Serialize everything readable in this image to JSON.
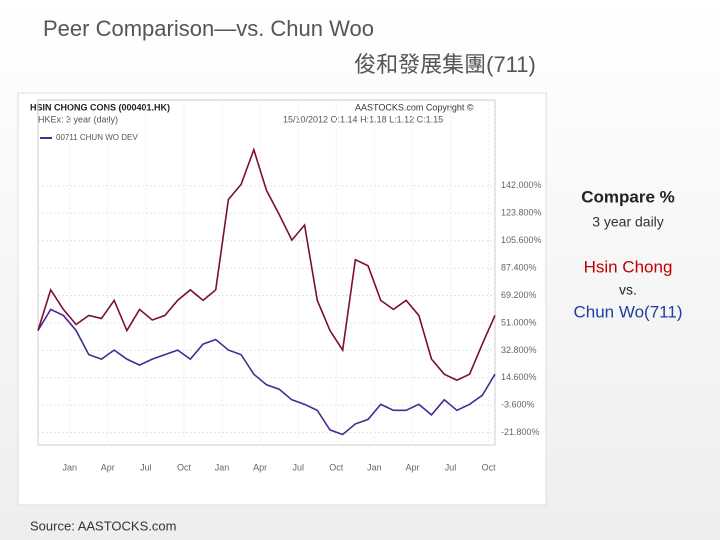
{
  "slide": {
    "title": "Peer Comparison—vs. Chun Woo",
    "subtitle": "俊和發展集團(711)",
    "compare": "Compare %",
    "period": "3 year daily",
    "company": "Hsin Chong",
    "vs": "vs.",
    "peer": "Chun Wo(711)",
    "source": "Source: AASTOCKS.com"
  },
  "chart_data": {
    "type": "line",
    "subtitle": "HKEx: 3 year (daily)",
    "copyright": "AASTOCKS.com Copyright ©",
    "quote": "15/10/2012 O:1.14 H:1.18 L:1.12 C:1.15",
    "x": [
      0,
      1,
      2,
      3,
      4,
      5,
      6,
      7,
      8,
      9,
      10,
      11,
      12,
      13,
      14,
      15,
      16,
      17,
      18,
      19,
      20,
      21,
      22,
      23,
      24,
      25,
      26,
      27,
      28,
      29,
      30,
      31,
      32,
      33,
      34,
      35,
      36
    ],
    "series": [
      {
        "name": "HSIN CHONG CONS (000401.HK)",
        "color": "#7a1030",
        "values": [
          46,
          73,
          60,
          50,
          56,
          54,
          66,
          46,
          60,
          53,
          56,
          66,
          73,
          66,
          73,
          133,
          143,
          166,
          139,
          123,
          106,
          116,
          66,
          46,
          33,
          93,
          89,
          66,
          60,
          66,
          56,
          27,
          17,
          13,
          17,
          37,
          56
        ]
      },
      {
        "name": "00711 CHUN WO DEV",
        "color": "#4a2a90",
        "values": [
          46,
          60,
          56,
          46,
          30,
          27,
          33,
          27,
          23,
          27,
          30,
          33,
          27,
          37,
          40,
          33,
          30,
          17,
          10,
          7,
          0,
          -3,
          -7,
          -20,
          -23,
          -16,
          -13,
          -3,
          -7,
          -7,
          -3,
          -10,
          0,
          -7,
          -3,
          3,
          17
        ]
      }
    ],
    "xlim": [
      0,
      36
    ],
    "xticks": [
      {
        "value": 2.5,
        "label": "Jan"
      },
      {
        "value": 5.5,
        "label": "Apr"
      },
      {
        "value": 8.5,
        "label": "Jul"
      },
      {
        "value": 11.5,
        "label": "Oct"
      },
      {
        "value": 14.5,
        "label": "Jan"
      },
      {
        "value": 17.5,
        "label": "Apr"
      },
      {
        "value": 20.5,
        "label": "Jul"
      },
      {
        "value": 23.5,
        "label": "Oct"
      },
      {
        "value": 26.5,
        "label": "Jan"
      },
      {
        "value": 29.5,
        "label": "Apr"
      },
      {
        "value": 32.5,
        "label": "Jul"
      },
      {
        "value": 35.5,
        "label": "Oct"
      }
    ],
    "ylim": [
      -30,
      199
    ],
    "yticks": [
      {
        "value": 142,
        "label": "142.000%"
      },
      {
        "value": 123.8,
        "label": "123.800%"
      },
      {
        "value": 105.6,
        "label": "105.600%"
      },
      {
        "value": 87.4,
        "label": "87.400%"
      },
      {
        "value": 69.2,
        "label": "69.200%"
      },
      {
        "value": 51,
        "label": "51.000%"
      },
      {
        "value": 32.8,
        "label": "32.800%"
      },
      {
        "value": 14.6,
        "label": "14.600%"
      },
      {
        "value": -3.6,
        "label": "-3.600%"
      },
      {
        "value": -21.8,
        "label": "-21.800%"
      }
    ],
    "grid": true
  }
}
